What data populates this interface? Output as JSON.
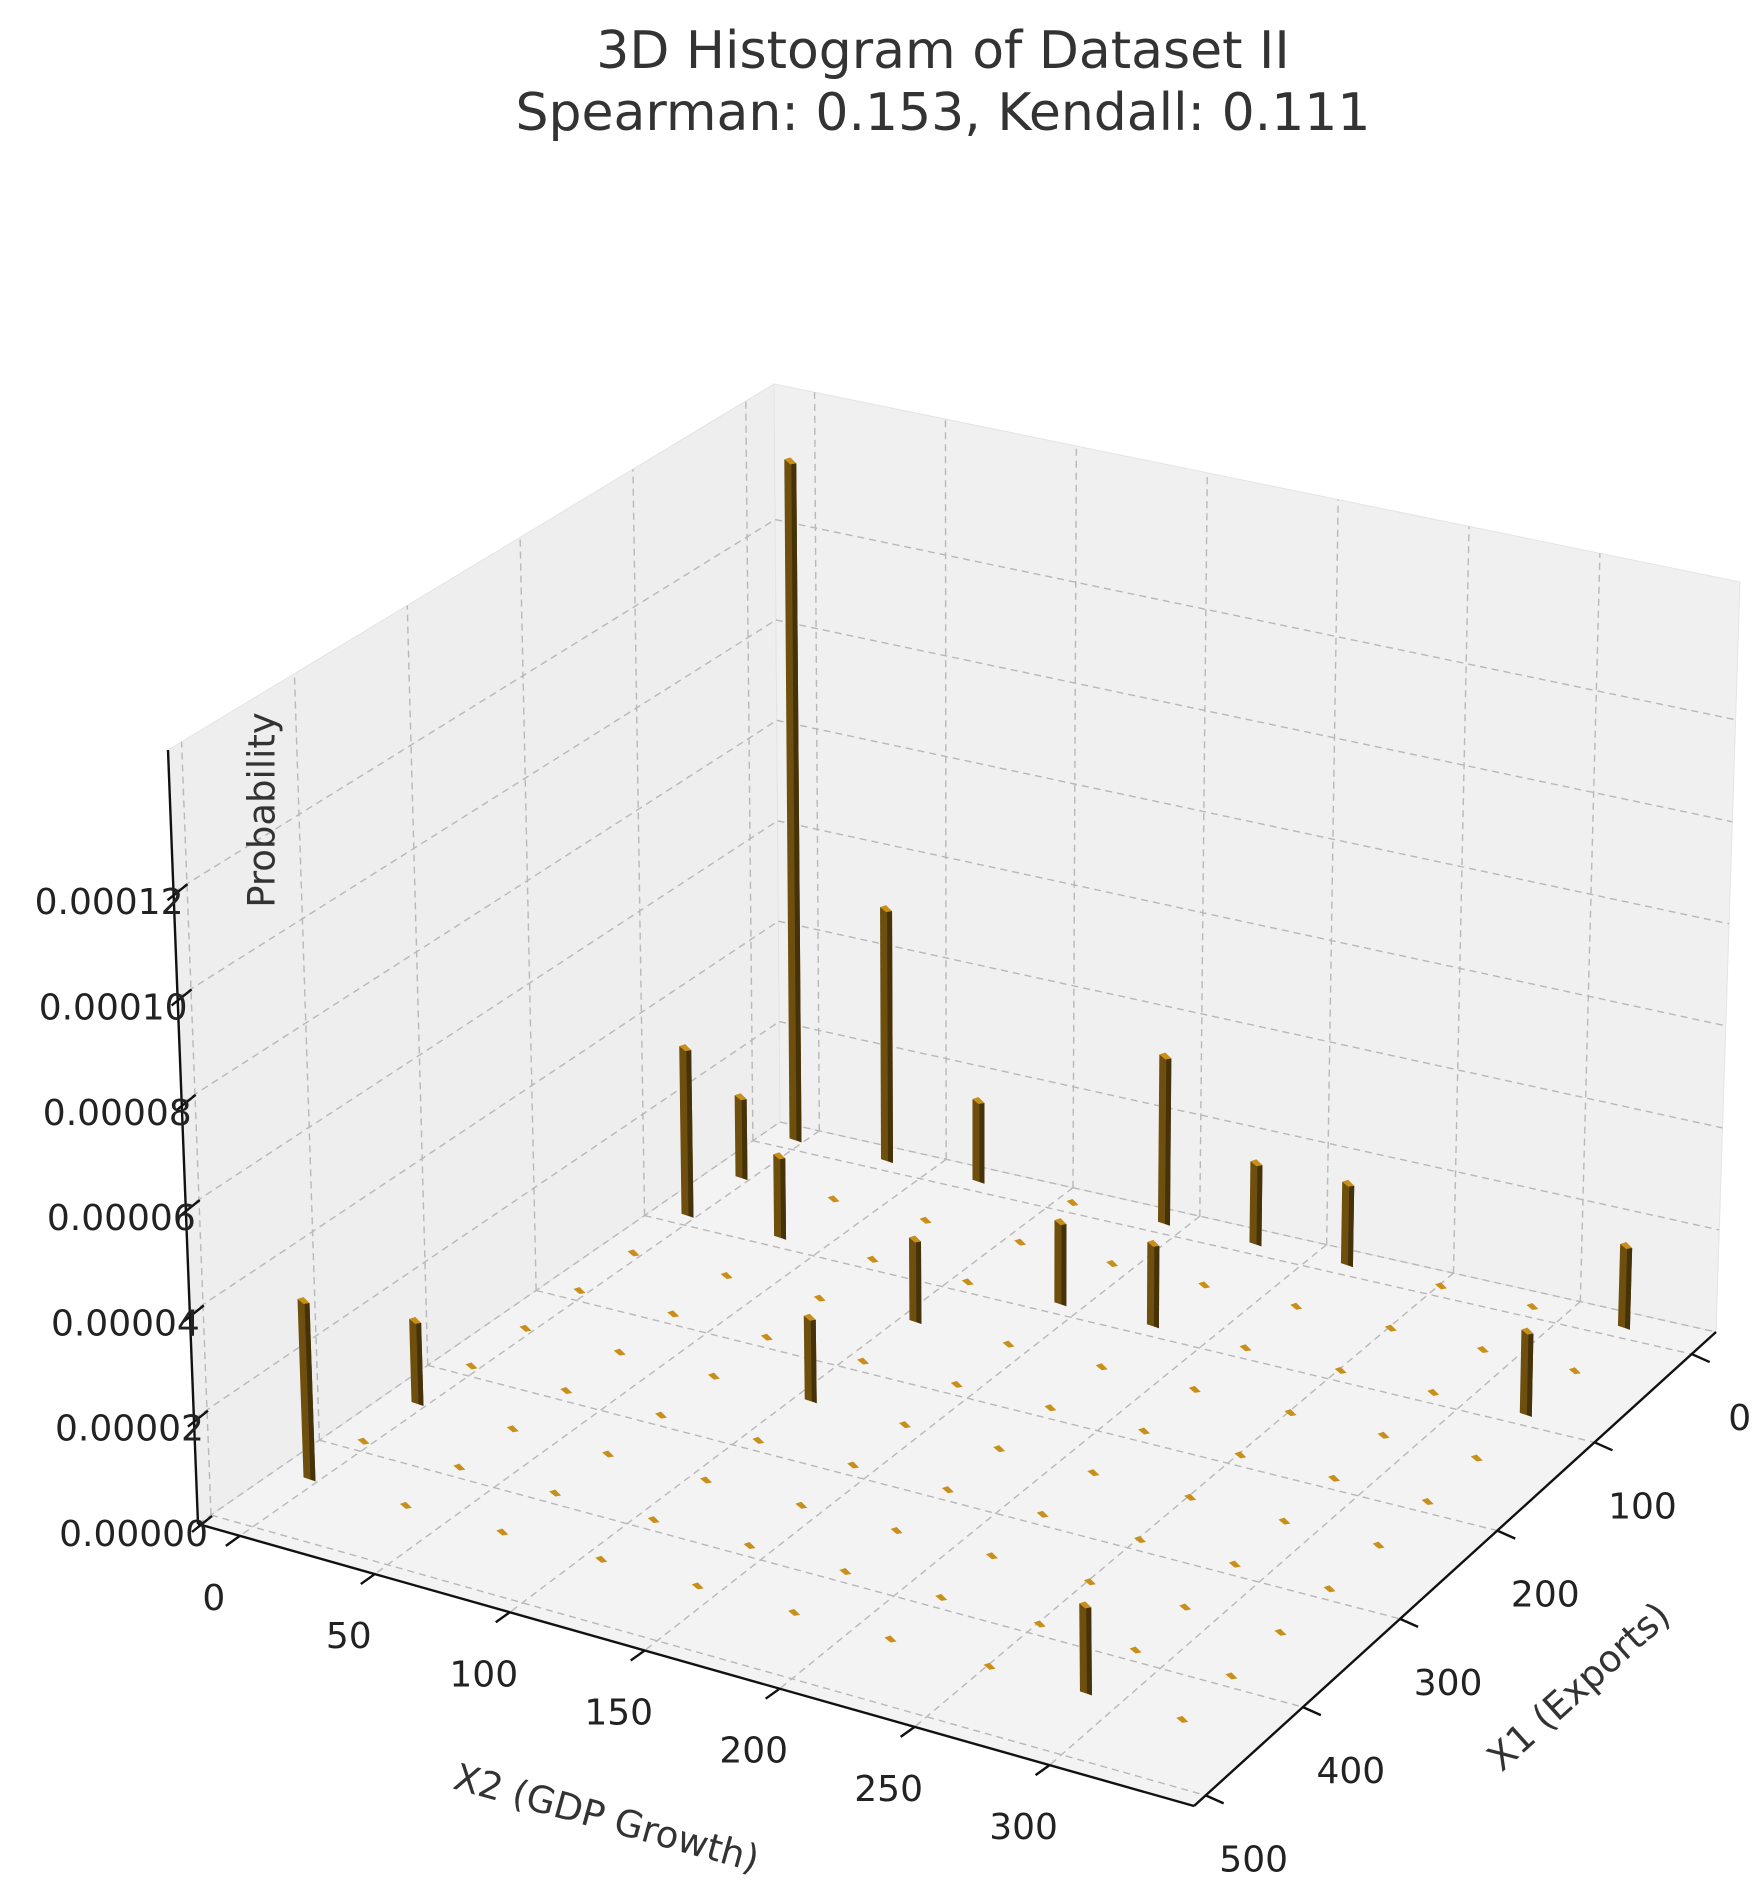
{
  "chart_data": {
    "type": "bar3d",
    "title": "3D Histogram of Dataset II",
    "subtitle": "Spearman: 0.153, Kendall: 0.111",
    "xlabel": "X2 (GDP Growth)",
    "ylabel": "X1 (Exports)",
    "zlabel": "Probability",
    "x2": [
      -3,
      33,
      69,
      106,
      142,
      178,
      214,
      251,
      287,
      323
    ],
    "x1": [
      -10,
      40,
      90,
      140,
      190,
      240,
      290,
      340,
      390,
      440
    ],
    "values": [
      [
        0.000135,
        5e-05,
        1.6e-05,
        0,
        3.3e-05,
        1.6e-05,
        1.6e-05,
        0,
        0,
        1.6e-05
      ],
      [
        1.6e-05,
        0,
        0,
        0,
        0,
        0,
        0,
        0,
        0,
        0
      ],
      [
        3.3e-05,
        1.6e-05,
        0,
        0,
        1.6e-05,
        1.6e-05,
        0,
        0,
        0,
        1.6e-05
      ],
      [
        0,
        0,
        0,
        1.6e-05,
        0,
        0,
        0,
        0,
        0,
        0
      ],
      [
        0,
        0,
        0,
        0,
        0,
        0,
        0,
        0,
        0,
        0
      ],
      [
        0,
        0,
        0,
        1.6e-05,
        0,
        0,
        0,
        0,
        0,
        0
      ],
      [
        0,
        0,
        0,
        0,
        0,
        0,
        0,
        0,
        0,
        0
      ],
      [
        1.6e-05,
        0,
        0,
        0,
        0,
        0,
        0,
        0,
        0,
        0
      ],
      [
        0,
        0,
        0,
        0,
        0,
        0,
        0,
        0,
        0,
        0
      ],
      [
        3.4e-05,
        0,
        0,
        0,
        0,
        0,
        0,
        0,
        1.6e-05,
        0
      ]
    ],
    "x2lim": [
      -15.5,
      353.5
    ],
    "x2ticks": [
      0,
      50,
      100,
      150,
      200,
      250,
      300
    ],
    "x1lim": [
      -25,
      512
    ],
    "x1ticks": [
      0,
      100,
      200,
      300,
      400,
      500
    ],
    "zlim": [
      0,
      0.000147
    ],
    "zticks": [
      {
        "value": 0,
        "label": "0.00000"
      },
      {
        "value": 2e-05,
        "label": "0.00002"
      },
      {
        "value": 4e-05,
        "label": "0.00004"
      },
      {
        "value": 6e-05,
        "label": "0.00006"
      },
      {
        "value": 8e-05,
        "label": "0.00008"
      },
      {
        "value": 0.0001,
        "label": "0.00010"
      },
      {
        "value": 0.00012,
        "label": "0.00012"
      }
    ],
    "color": "#c8901a",
    "grid": true
  }
}
